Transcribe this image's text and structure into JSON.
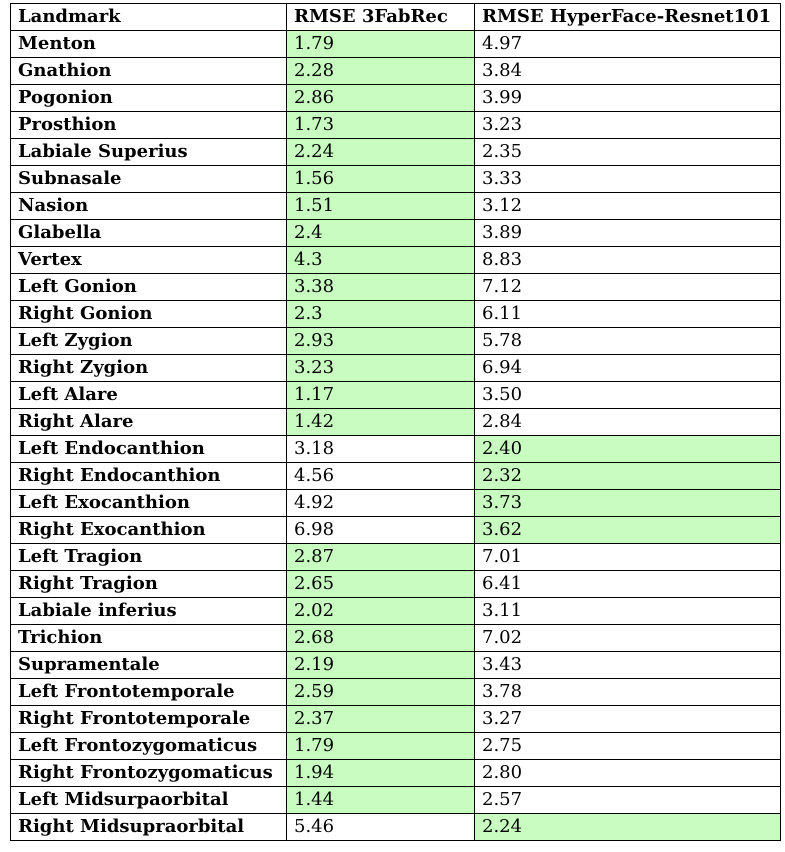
{
  "header": {
    "landmark": "Landmark",
    "rmse_3fabrec": "RMSE 3FabRec",
    "rmse_hyperface": "RMSE HyperFace-Resnet101"
  },
  "highlight_color": "#c8fcc0",
  "rows": [
    {
      "landmark": "Menton",
      "fabrec": "1.79",
      "hyperface": "4.97",
      "best": "fabrec"
    },
    {
      "landmark": "Gnathion",
      "fabrec": "2.28",
      "hyperface": "3.84",
      "best": "fabrec"
    },
    {
      "landmark": "Pogonion",
      "fabrec": "2.86",
      "hyperface": "3.99",
      "best": "fabrec"
    },
    {
      "landmark": "Prosthion",
      "fabrec": "1.73",
      "hyperface": "3.23",
      "best": "fabrec"
    },
    {
      "landmark": "Labiale Superius",
      "fabrec": "2.24",
      "hyperface": "2.35",
      "best": "fabrec"
    },
    {
      "landmark": "Subnasale",
      "fabrec": "1.56",
      "hyperface": "3.33",
      "best": "fabrec"
    },
    {
      "landmark": "Nasion",
      "fabrec": "1.51",
      "hyperface": "3.12",
      "best": "fabrec"
    },
    {
      "landmark": "Glabella",
      "fabrec": "2.4",
      "hyperface": "3.89",
      "best": "fabrec"
    },
    {
      "landmark": "Vertex",
      "fabrec": "4.3",
      "hyperface": "8.83",
      "best": "fabrec"
    },
    {
      "landmark": "Left Gonion",
      "fabrec": "3.38",
      "hyperface": "7.12",
      "best": "fabrec"
    },
    {
      "landmark": "Right Gonion",
      "fabrec": "2.3",
      "hyperface": "6.11",
      "best": "fabrec"
    },
    {
      "landmark": "Left Zygion",
      "fabrec": "2.93",
      "hyperface": "5.78",
      "best": "fabrec"
    },
    {
      "landmark": "Right Zygion",
      "fabrec": "3.23",
      "hyperface": "6.94",
      "best": "fabrec"
    },
    {
      "landmark": "Left Alare",
      "fabrec": "1.17",
      "hyperface": "3.50",
      "best": "fabrec"
    },
    {
      "landmark": "Right Alare",
      "fabrec": "1.42",
      "hyperface": "2.84",
      "best": "fabrec"
    },
    {
      "landmark": "Left Endocanthion",
      "fabrec": "3.18",
      "hyperface": "2.40",
      "best": "hyperface"
    },
    {
      "landmark": "Right Endocanthion",
      "fabrec": "4.56",
      "hyperface": "2.32",
      "best": "hyperface"
    },
    {
      "landmark": "Left Exocanthion",
      "fabrec": "4.92",
      "hyperface": "3.73",
      "best": "hyperface"
    },
    {
      "landmark": "Right Exocanthion",
      "fabrec": "6.98",
      "hyperface": "3.62",
      "best": "hyperface"
    },
    {
      "landmark": "Left Tragion",
      "fabrec": "2.87",
      "hyperface": "7.01",
      "best": "fabrec"
    },
    {
      "landmark": "Right Tragion",
      "fabrec": "2.65",
      "hyperface": "6.41",
      "best": "fabrec"
    },
    {
      "landmark": "Labiale inferius",
      "fabrec": "2.02",
      "hyperface": "3.11",
      "best": "fabrec"
    },
    {
      "landmark": "Trichion",
      "fabrec": "2.68",
      "hyperface": "7.02",
      "best": "fabrec"
    },
    {
      "landmark": "Supramentale",
      "fabrec": "2.19",
      "hyperface": "3.43",
      "best": "fabrec"
    },
    {
      "landmark": "Left Frontotemporale",
      "fabrec": "2.59",
      "hyperface": "3.78",
      "best": "fabrec"
    },
    {
      "landmark": "Right Frontotemporale",
      "fabrec": "2.37",
      "hyperface": "3.27",
      "best": "fabrec"
    },
    {
      "landmark": "Left Frontozygomaticus",
      "fabrec": "1.79",
      "hyperface": "2.75",
      "best": "fabrec"
    },
    {
      "landmark": "Right Frontozygomaticus",
      "fabrec": "1.94",
      "hyperface": "2.80",
      "best": "fabrec"
    },
    {
      "landmark": "Left Midsurpaorbital",
      "fabrec": "1.44",
      "hyperface": "2.57",
      "best": "fabrec"
    },
    {
      "landmark": "Right Midsupraorbital",
      "fabrec": "5.46",
      "hyperface": "2.24",
      "best": "hyperface"
    }
  ]
}
